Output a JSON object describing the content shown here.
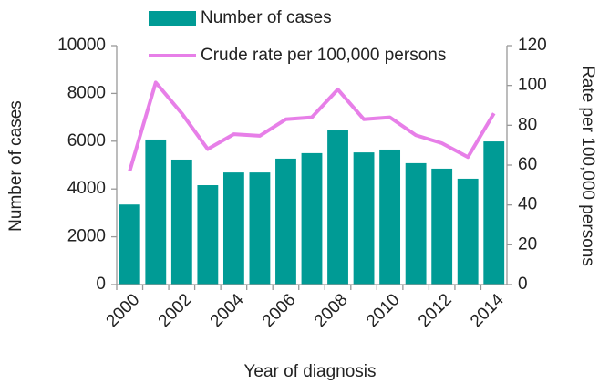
{
  "chart_data": {
    "type": "bar",
    "xlabel": "Year of diagnosis",
    "ylabel": "Number of cases",
    "y2label": "Rate per 100,000 persons",
    "categories": [
      "2000",
      null,
      "2002",
      null,
      "2004",
      null,
      "2006",
      null,
      "2008",
      null,
      "2010",
      null,
      "2012",
      null,
      "2014"
    ],
    "series": [
      {
        "name": "Number of cases",
        "type": "bar",
        "color": "#009b95",
        "values": [
          3350,
          6070,
          5230,
          4160,
          4690,
          4690,
          5270,
          5500,
          6450,
          5530,
          5650,
          5080,
          4850,
          4430,
          5990
        ]
      },
      {
        "name": "Crude rate per 100,000 persons",
        "type": "line",
        "axis": "y2",
        "color": "#e77fe8",
        "values": [
          57,
          101.5,
          86,
          68,
          75.5,
          74.7,
          83,
          84,
          98,
          83,
          84,
          75,
          71,
          64,
          86
        ]
      }
    ],
    "ylim": [
      0,
      10000
    ],
    "yticks": [
      0,
      2000,
      4000,
      6000,
      8000,
      10000
    ],
    "y2lim": [
      0,
      120
    ],
    "y2ticks": [
      0,
      20,
      40,
      60,
      80,
      100,
      120
    ],
    "legend": "top"
  }
}
